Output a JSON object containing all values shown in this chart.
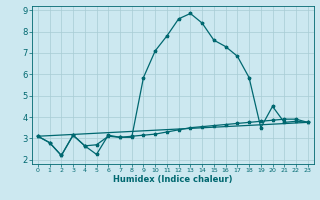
{
  "title": "",
  "xlabel": "Humidex (Indice chaleur)",
  "bg_color": "#cce8f0",
  "grid_color": "#a8ccd4",
  "line_color": "#006870",
  "xlim": [
    -0.5,
    23.5
  ],
  "ylim": [
    1.8,
    9.2
  ],
  "xticks": [
    0,
    1,
    2,
    3,
    4,
    5,
    6,
    7,
    8,
    9,
    10,
    11,
    12,
    13,
    14,
    15,
    16,
    17,
    18,
    19,
    20,
    21,
    22,
    23
  ],
  "yticks": [
    2,
    3,
    4,
    5,
    6,
    7,
    8,
    9
  ],
  "curve1_x": [
    0,
    1,
    2,
    3,
    4,
    5,
    6,
    7,
    8,
    9,
    10,
    11,
    12,
    13,
    14,
    15,
    16,
    17,
    18,
    19,
    20,
    21,
    22,
    23
  ],
  "curve1_y": [
    3.1,
    2.8,
    2.2,
    3.15,
    2.65,
    2.25,
    3.15,
    3.05,
    3.05,
    5.85,
    7.1,
    7.8,
    8.6,
    8.85,
    8.4,
    7.6,
    7.3,
    6.85,
    5.85,
    3.5,
    4.5,
    3.75,
    3.8,
    3.75
  ],
  "curve2_x": [
    0,
    1,
    2,
    3,
    4,
    5,
    6,
    7,
    8,
    9,
    10,
    11,
    12,
    13,
    14,
    15,
    16,
    17,
    18,
    19,
    20,
    21,
    22,
    23
  ],
  "curve2_y": [
    3.1,
    2.8,
    2.2,
    3.15,
    2.65,
    2.7,
    3.1,
    3.05,
    3.1,
    3.15,
    3.2,
    3.3,
    3.4,
    3.5,
    3.55,
    3.6,
    3.65,
    3.7,
    3.75,
    3.8,
    3.85,
    3.9,
    3.9,
    3.75
  ],
  "curve3_x": [
    0,
    23
  ],
  "curve3_y": [
    3.1,
    3.75
  ]
}
